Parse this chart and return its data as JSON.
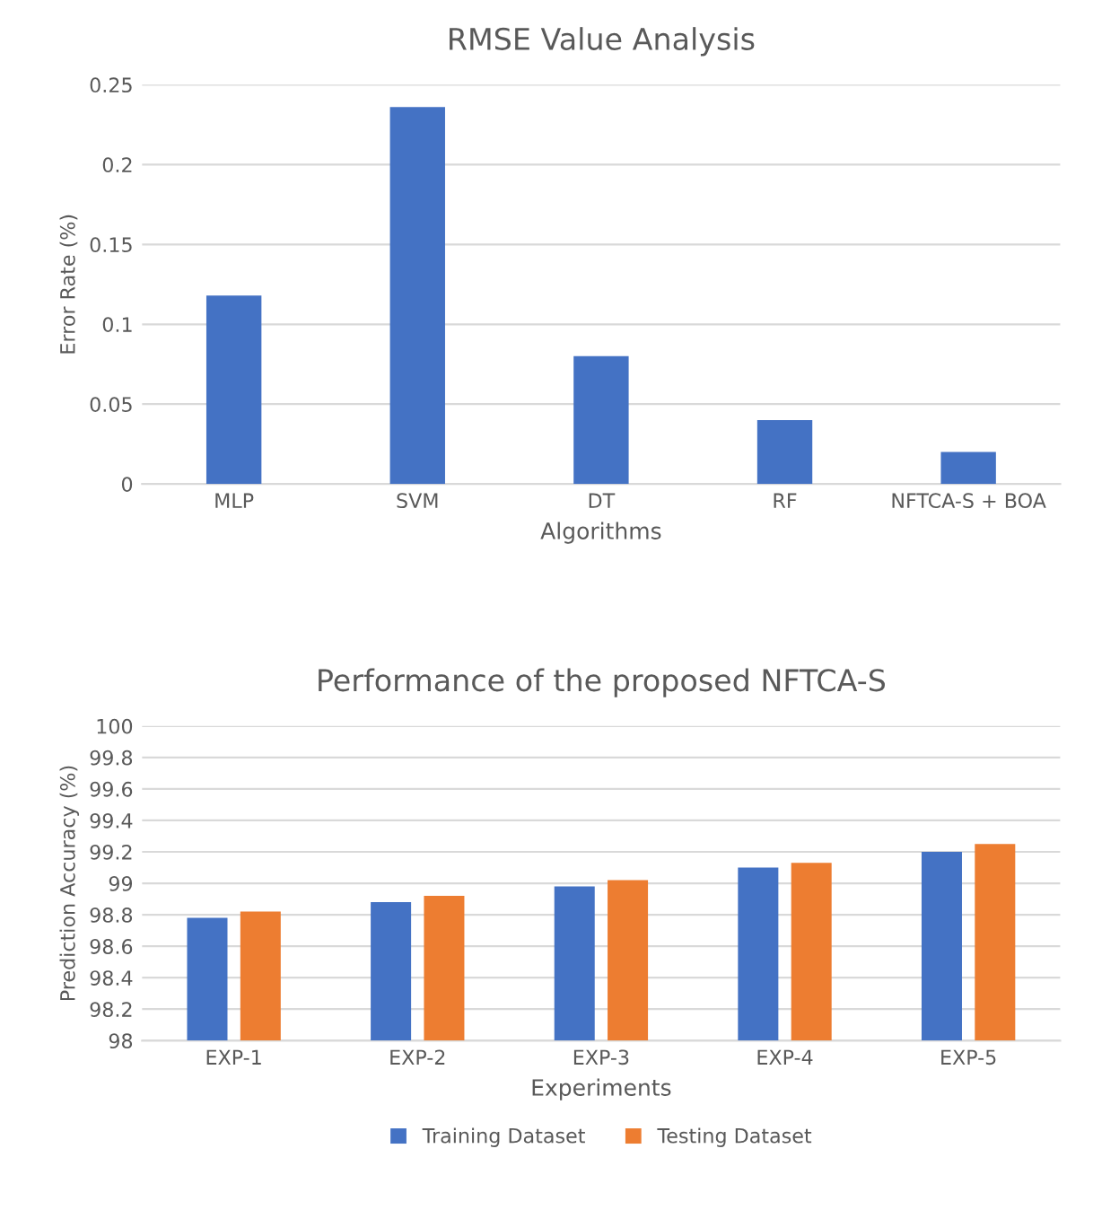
{
  "chart_data": [
    {
      "type": "bar",
      "title": "RMSE Value Analysis",
      "xlabel": "Algorithms",
      "ylabel": "Error Rate (%)",
      "categories": [
        "MLP",
        "SVM",
        "DT",
        "RF",
        "NFTCA-S + BOA"
      ],
      "series": [
        {
          "color": "#4472c4",
          "values": [
            0.118,
            0.236,
            0.08,
            0.04,
            0.02
          ]
        }
      ],
      "ylim": [
        0,
        0.25
      ],
      "yticks": [
        0,
        0.05,
        0.1,
        0.15,
        0.2,
        0.25
      ],
      "grid": "y",
      "legend": false
    },
    {
      "type": "bar",
      "title": "Performance of the proposed NFTCA-S",
      "xlabel": "Experiments",
      "ylabel": "Prediction Accuracy (%)",
      "categories": [
        "EXP-1",
        "EXP-2",
        "EXP-3",
        "EXP-4",
        "EXP-5"
      ],
      "series": [
        {
          "name": "Training Dataset",
          "color": "#4472c4",
          "values": [
            98.78,
            98.88,
            98.98,
            99.1,
            99.2
          ]
        },
        {
          "name": "Testing Dataset",
          "color": "#ed7d31",
          "values": [
            98.82,
            98.92,
            99.02,
            99.13,
            99.25
          ]
        }
      ],
      "ylim": [
        98,
        100
      ],
      "yticks": [
        98,
        98.2,
        98.4,
        98.6,
        98.8,
        99,
        99.2,
        99.4,
        99.6,
        99.8,
        100
      ],
      "grid": "y",
      "legend": "bottom"
    }
  ]
}
